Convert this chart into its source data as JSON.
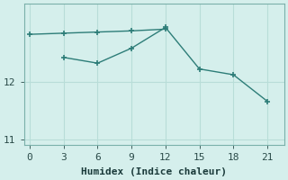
{
  "xlabel": "Humidex (Indice chaleur)",
  "background_color": "#d5efec",
  "line_color": "#2d7d78",
  "grid_color": "#b8ddd8",
  "line1_x": [
    0,
    3,
    6,
    9,
    12
  ],
  "line1_y": [
    12.82,
    12.84,
    12.86,
    12.88,
    12.91
  ],
  "line2_x": [
    3,
    6,
    9,
    12,
    15,
    18,
    21
  ],
  "line2_y": [
    12.42,
    12.32,
    12.58,
    12.94,
    12.22,
    12.12,
    11.66
  ],
  "ylim": [
    10.9,
    13.35
  ],
  "xlim": [
    -0.5,
    22.5
  ],
  "xticks": [
    0,
    3,
    6,
    9,
    12,
    15,
    18,
    21
  ],
  "yticks": [
    11,
    12
  ],
  "tick_fontsize": 8,
  "label_fontsize": 8
}
